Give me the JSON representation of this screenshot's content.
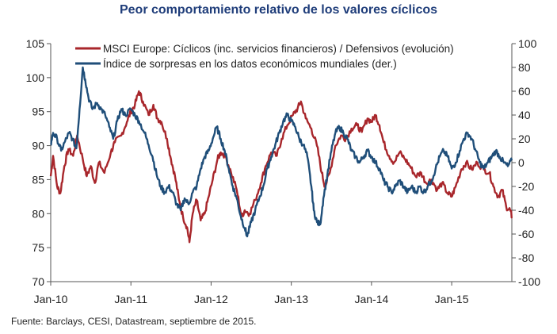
{
  "chart_data": {
    "type": "line",
    "title": "Peor comportamiento relativo de los valores cíclicos",
    "source": "Fuente: Barclays, CESI, Datastream, septiembre de 2015.",
    "x_ticks": [
      "Jan-10",
      "Jan-11",
      "Jan-12",
      "Jan-13",
      "Jan-14",
      "Jan-15"
    ],
    "x_range": [
      2010.0,
      2015.75
    ],
    "y_left": {
      "ylim": [
        70,
        105
      ],
      "ticks": [
        "105",
        "100",
        "95",
        "90",
        "85",
        "80",
        "75",
        "70"
      ]
    },
    "y_right": {
      "ylim": [
        -100,
        100
      ],
      "ticks": [
        "100",
        "80",
        "60",
        "40",
        "20",
        "0",
        "-20",
        "-40",
        "-60",
        "-80",
        "-100"
      ]
    },
    "series": [
      {
        "name": "MSCI Europe: Cíclicos (inc. servicios financieros) / Defensivos (evolución)",
        "axis": "left",
        "color": "#a8262b",
        "points": [
          [
            2010.0,
            85.5
          ],
          [
            2010.03,
            88.5
          ],
          [
            2010.08,
            84.0
          ],
          [
            2010.12,
            83.0
          ],
          [
            2010.17,
            87.0
          ],
          [
            2010.22,
            89.5
          ],
          [
            2010.28,
            88.5
          ],
          [
            2010.33,
            91.5
          ],
          [
            2010.4,
            88.0
          ],
          [
            2010.45,
            85.5
          ],
          [
            2010.5,
            87.0
          ],
          [
            2010.55,
            84.5
          ],
          [
            2010.6,
            87.5
          ],
          [
            2010.67,
            86.0
          ],
          [
            2010.75,
            89.0
          ],
          [
            2010.8,
            90.5
          ],
          [
            2010.88,
            91.5
          ],
          [
            2010.95,
            93.5
          ],
          [
            2011.0,
            95.0
          ],
          [
            2011.05,
            96.0
          ],
          [
            2011.1,
            98.0
          ],
          [
            2011.15,
            96.5
          ],
          [
            2011.22,
            94.5
          ],
          [
            2011.28,
            96.0
          ],
          [
            2011.33,
            94.0
          ],
          [
            2011.38,
            93.5
          ],
          [
            2011.45,
            91.0
          ],
          [
            2011.5,
            88.0
          ],
          [
            2011.55,
            85.5
          ],
          [
            2011.6,
            82.0
          ],
          [
            2011.65,
            79.5
          ],
          [
            2011.7,
            78.0
          ],
          [
            2011.73,
            75.8
          ],
          [
            2011.77,
            80.0
          ],
          [
            2011.82,
            82.0
          ],
          [
            2011.87,
            79.0
          ],
          [
            2011.92,
            80.0
          ],
          [
            2011.97,
            82.5
          ],
          [
            2012.02,
            85.0
          ],
          [
            2012.08,
            88.0
          ],
          [
            2012.12,
            89.0
          ],
          [
            2012.18,
            88.5
          ],
          [
            2012.25,
            86.0
          ],
          [
            2012.32,
            83.5
          ],
          [
            2012.38,
            79.5
          ],
          [
            2012.42,
            80.5
          ],
          [
            2012.48,
            80.0
          ],
          [
            2012.55,
            82.0
          ],
          [
            2012.62,
            84.5
          ],
          [
            2012.68,
            87.0
          ],
          [
            2012.75,
            89.0
          ],
          [
            2012.82,
            88.5
          ],
          [
            2012.88,
            91.0
          ],
          [
            2012.95,
            93.0
          ],
          [
            2013.02,
            94.5
          ],
          [
            2013.08,
            95.5
          ],
          [
            2013.12,
            96.5
          ],
          [
            2013.18,
            94.0
          ],
          [
            2013.25,
            92.5
          ],
          [
            2013.32,
            90.0
          ],
          [
            2013.38,
            86.0
          ],
          [
            2013.42,
            84.0
          ],
          [
            2013.48,
            86.0
          ],
          [
            2013.55,
            90.0
          ],
          [
            2013.62,
            91.5
          ],
          [
            2013.68,
            91.0
          ],
          [
            2013.75,
            92.5
          ],
          [
            2013.82,
            93.0
          ],
          [
            2013.88,
            92.0
          ],
          [
            2013.95,
            94.0
          ],
          [
            2014.0,
            93.5
          ],
          [
            2014.05,
            94.5
          ],
          [
            2014.1,
            93.0
          ],
          [
            2014.15,
            90.5
          ],
          [
            2014.22,
            88.5
          ],
          [
            2014.28,
            87.5
          ],
          [
            2014.35,
            89.0
          ],
          [
            2014.42,
            88.0
          ],
          [
            2014.48,
            87.0
          ],
          [
            2014.55,
            85.5
          ],
          [
            2014.62,
            86.0
          ],
          [
            2014.68,
            84.5
          ],
          [
            2014.75,
            85.0
          ],
          [
            2014.82,
            83.5
          ],
          [
            2014.88,
            84.5
          ],
          [
            2014.95,
            83.0
          ],
          [
            2015.0,
            82.5
          ],
          [
            2015.05,
            84.0
          ],
          [
            2015.12,
            86.5
          ],
          [
            2015.18,
            87.5
          ],
          [
            2015.25,
            86.5
          ],
          [
            2015.32,
            87.5
          ],
          [
            2015.4,
            86.5
          ],
          [
            2015.47,
            86.0
          ],
          [
            2015.52,
            84.0
          ],
          [
            2015.58,
            82.5
          ],
          [
            2015.63,
            83.5
          ],
          [
            2015.68,
            81.0
          ],
          [
            2015.73,
            80.5
          ],
          [
            2015.75,
            79.5
          ]
        ]
      },
      {
        "name": "Índice de sorpresas en los datos económicos mundiales (der.)",
        "axis": "right",
        "color": "#1f4e79",
        "points": [
          [
            2010.0,
            15.0
          ],
          [
            2010.03,
            25.0
          ],
          [
            2010.08,
            20.0
          ],
          [
            2010.13,
            10.0
          ],
          [
            2010.18,
            18.0
          ],
          [
            2010.23,
            25.0
          ],
          [
            2010.27,
            20.0
          ],
          [
            2010.32,
            12.0
          ],
          [
            2010.36,
            45.0
          ],
          [
            2010.4,
            80.0
          ],
          [
            2010.43,
            70.0
          ],
          [
            2010.47,
            55.0
          ],
          [
            2010.52,
            45.0
          ],
          [
            2010.58,
            50.0
          ],
          [
            2010.63,
            45.0
          ],
          [
            2010.68,
            40.0
          ],
          [
            2010.73,
            30.0
          ],
          [
            2010.78,
            20.0
          ],
          [
            2010.83,
            35.0
          ],
          [
            2010.88,
            45.0
          ],
          [
            2010.93,
            40.0
          ],
          [
            2011.0,
            45.0
          ],
          [
            2011.05,
            40.0
          ],
          [
            2011.1,
            35.0
          ],
          [
            2011.17,
            25.0
          ],
          [
            2011.22,
            15.0
          ],
          [
            2011.27,
            5.0
          ],
          [
            2011.32,
            -10.0
          ],
          [
            2011.37,
            -20.0
          ],
          [
            2011.42,
            -25.0
          ],
          [
            2011.47,
            -20.0
          ],
          [
            2011.52,
            -25.0
          ],
          [
            2011.57,
            -35.0
          ],
          [
            2011.62,
            -40.0
          ],
          [
            2011.67,
            -30.0
          ],
          [
            2011.72,
            -35.0
          ],
          [
            2011.77,
            -25.0
          ],
          [
            2011.82,
            -20.0
          ],
          [
            2011.87,
            -5.0
          ],
          [
            2011.92,
            5.0
          ],
          [
            2011.97,
            10.0
          ],
          [
            2012.02,
            20.0
          ],
          [
            2012.07,
            30.0
          ],
          [
            2012.12,
            20.0
          ],
          [
            2012.17,
            10.0
          ],
          [
            2012.22,
            -5.0
          ],
          [
            2012.27,
            -20.0
          ],
          [
            2012.32,
            -30.0
          ],
          [
            2012.37,
            -45.0
          ],
          [
            2012.42,
            -55.0
          ],
          [
            2012.45,
            -62.0
          ],
          [
            2012.5,
            -50.0
          ],
          [
            2012.55,
            -40.0
          ],
          [
            2012.6,
            -30.0
          ],
          [
            2012.65,
            -20.0
          ],
          [
            2012.7,
            -5.0
          ],
          [
            2012.75,
            5.0
          ],
          [
            2012.8,
            15.0
          ],
          [
            2012.85,
            25.0
          ],
          [
            2012.9,
            35.0
          ],
          [
            2012.95,
            40.0
          ],
          [
            2013.0,
            35.0
          ],
          [
            2013.05,
            30.0
          ],
          [
            2013.1,
            20.0
          ],
          [
            2013.15,
            15.0
          ],
          [
            2013.2,
            5.0
          ],
          [
            2013.25,
            -20.0
          ],
          [
            2013.28,
            -40.0
          ],
          [
            2013.32,
            -50.0
          ],
          [
            2013.36,
            -52.0
          ],
          [
            2013.4,
            -30.0
          ],
          [
            2013.45,
            -10.0
          ],
          [
            2013.5,
            10.0
          ],
          [
            2013.55,
            25.0
          ],
          [
            2013.6,
            30.0
          ],
          [
            2013.65,
            25.0
          ],
          [
            2013.7,
            20.0
          ],
          [
            2013.75,
            10.0
          ],
          [
            2013.8,
            5.0
          ],
          [
            2013.85,
            0.0
          ],
          [
            2013.9,
            5.0
          ],
          [
            2013.95,
            10.0
          ],
          [
            2014.0,
            5.0
          ],
          [
            2014.05,
            0.0
          ],
          [
            2014.1,
            -5.0
          ],
          [
            2014.15,
            -15.0
          ],
          [
            2014.2,
            -20.0
          ],
          [
            2014.25,
            -25.0
          ],
          [
            2014.3,
            -20.0
          ],
          [
            2014.35,
            -15.0
          ],
          [
            2014.4,
            -20.0
          ],
          [
            2014.45,
            -25.0
          ],
          [
            2014.5,
            -20.0
          ],
          [
            2014.55,
            -25.0
          ],
          [
            2014.6,
            -20.0
          ],
          [
            2014.65,
            -25.0
          ],
          [
            2014.7,
            -20.0
          ],
          [
            2014.75,
            -15.0
          ],
          [
            2014.8,
            -5.0
          ],
          [
            2014.85,
            5.0
          ],
          [
            2014.9,
            10.0
          ],
          [
            2014.95,
            5.0
          ],
          [
            2015.0,
            -5.0
          ],
          [
            2015.05,
            0.0
          ],
          [
            2015.1,
            10.0
          ],
          [
            2015.15,
            20.0
          ],
          [
            2015.2,
            25.0
          ],
          [
            2015.25,
            20.0
          ],
          [
            2015.3,
            10.0
          ],
          [
            2015.35,
            0.0
          ],
          [
            2015.4,
            -5.0
          ],
          [
            2015.45,
            0.0
          ],
          [
            2015.5,
            5.0
          ],
          [
            2015.55,
            10.0
          ],
          [
            2015.6,
            5.0
          ],
          [
            2015.65,
            0.0
          ],
          [
            2015.7,
            -3.0
          ],
          [
            2015.75,
            2.0
          ]
        ]
      }
    ]
  }
}
